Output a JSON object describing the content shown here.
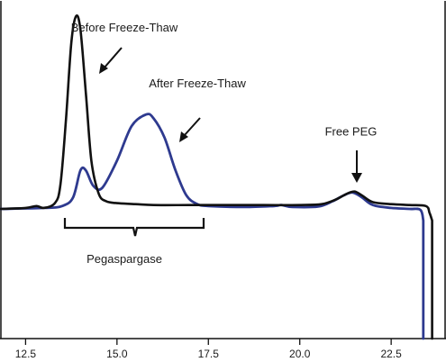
{
  "chart_data": {
    "type": "line",
    "title": "",
    "xlabel": "",
    "ylabel": "",
    "xlim": [
      11.8,
      24.0
    ],
    "ylim": [
      -0.06,
      1.05
    ],
    "grid": false,
    "legend": "none",
    "x_ticks": [
      12.5,
      15.0,
      17.5,
      20.0,
      22.5
    ],
    "x_tick_labels": [
      "12.5",
      "15.0",
      "17.5",
      "20.0",
      "22.5"
    ],
    "series": [
      {
        "color": "#111111",
        "points": [
          [
            11.8,
            0.0
          ],
          [
            12.5,
            0.005
          ],
          [
            12.8,
            0.015
          ],
          [
            13.0,
            0.005
          ],
          [
            13.3,
            0.03
          ],
          [
            13.45,
            0.12
          ],
          [
            13.6,
            0.45
          ],
          [
            13.75,
            0.86
          ],
          [
            13.88,
            1.0
          ],
          [
            14.0,
            0.93
          ],
          [
            14.15,
            0.6
          ],
          [
            14.3,
            0.25
          ],
          [
            14.5,
            0.08
          ],
          [
            14.7,
            0.04
          ],
          [
            15.0,
            0.03
          ],
          [
            15.5,
            0.025
          ],
          [
            16.0,
            0.02
          ],
          [
            17.0,
            0.02
          ],
          [
            18.0,
            0.02
          ],
          [
            19.0,
            0.02
          ],
          [
            20.0,
            0.02
          ],
          [
            20.6,
            0.025
          ],
          [
            21.0,
            0.05
          ],
          [
            21.3,
            0.08
          ],
          [
            21.5,
            0.09
          ],
          [
            21.7,
            0.07
          ],
          [
            22.0,
            0.035
          ],
          [
            22.5,
            0.025
          ],
          [
            23.0,
            0.02
          ],
          [
            23.45,
            0.015
          ],
          [
            23.55,
            -0.02
          ],
          [
            23.62,
            -0.06
          ]
        ]
      },
      {
        "color": "#2e3a8f",
        "points": [
          [
            11.8,
            0.0
          ],
          [
            13.0,
            0.005
          ],
          [
            13.5,
            0.015
          ],
          [
            13.8,
            0.06
          ],
          [
            14.0,
            0.2
          ],
          [
            14.15,
            0.2
          ],
          [
            14.35,
            0.12
          ],
          [
            14.6,
            0.11
          ],
          [
            15.0,
            0.25
          ],
          [
            15.4,
            0.43
          ],
          [
            15.8,
            0.49
          ],
          [
            16.0,
            0.47
          ],
          [
            16.3,
            0.37
          ],
          [
            16.6,
            0.2
          ],
          [
            16.9,
            0.07
          ],
          [
            17.2,
            0.025
          ],
          [
            17.5,
            0.015
          ],
          [
            18.5,
            0.01
          ],
          [
            19.3,
            0.015
          ],
          [
            19.5,
            0.02
          ],
          [
            19.8,
            0.01
          ],
          [
            20.5,
            0.012
          ],
          [
            20.9,
            0.04
          ],
          [
            21.2,
            0.07
          ],
          [
            21.45,
            0.085
          ],
          [
            21.7,
            0.06
          ],
          [
            22.0,
            0.02
          ],
          [
            22.5,
            0.005
          ],
          [
            23.0,
            0.0
          ],
          [
            23.3,
            -0.005
          ],
          [
            23.38,
            -0.06
          ]
        ]
      }
    ],
    "annotations": [
      {
        "text": "Before Freeze-Thaw",
        "x": 15.2,
        "y": 0.92
      },
      {
        "text": "After Freeze-Thaw",
        "x": 17.2,
        "y": 0.63
      },
      {
        "text": "Free PEG",
        "x": 21.4,
        "y": 0.38
      },
      {
        "text": "Pegaspargase",
        "x": 15.2,
        "y": -0.28
      }
    ]
  }
}
